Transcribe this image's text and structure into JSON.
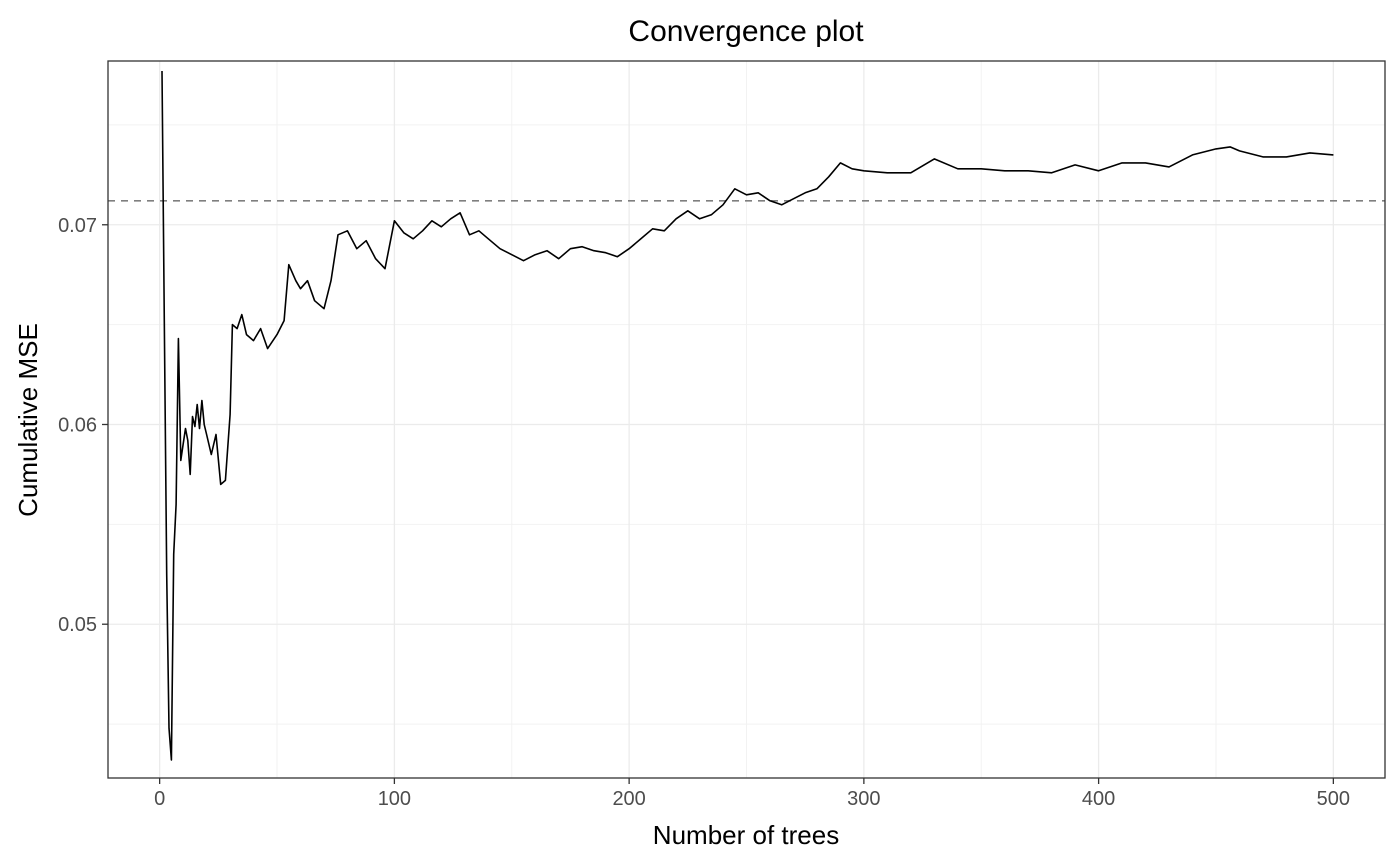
{
  "chart_data": {
    "type": "line",
    "title": "Convergence plot",
    "xlabel": "Number of trees",
    "ylabel": "Cumulative MSE",
    "xlim": [
      -22,
      522
    ],
    "ylim": [
      0.0423,
      0.0782
    ],
    "x_ticks": [
      0,
      100,
      200,
      300,
      400,
      500
    ],
    "x_tick_labels": [
      "0",
      "100",
      "200",
      "300",
      "400",
      "500"
    ],
    "y_ticks": [
      0.05,
      0.06,
      0.07
    ],
    "y_tick_labels": [
      "0.05",
      "0.06",
      "0.07"
    ],
    "grid": true,
    "legend": "none",
    "reference_line": {
      "y": 0.0712,
      "style": "dashed",
      "color": "#7f7f7f"
    },
    "series": [
      {
        "color": "#000000",
        "x": [
          1,
          2,
          3,
          4,
          5,
          6,
          7,
          8,
          9,
          10,
          11,
          12,
          13,
          14,
          15,
          16,
          17,
          18,
          19,
          20,
          22,
          24,
          26,
          28,
          30,
          31,
          33,
          35,
          37,
          40,
          43,
          46,
          50,
          53,
          55,
          58,
          60,
          63,
          66,
          70,
          73,
          76,
          80,
          84,
          88,
          92,
          96,
          100,
          104,
          108,
          112,
          116,
          120,
          124,
          128,
          132,
          136,
          140,
          145,
          150,
          155,
          160,
          165,
          170,
          175,
          180,
          185,
          190,
          195,
          200,
          205,
          210,
          215,
          220,
          225,
          230,
          235,
          240,
          245,
          250,
          255,
          260,
          265,
          270,
          275,
          280,
          285,
          290,
          295,
          300,
          310,
          320,
          330,
          340,
          350,
          360,
          370,
          380,
          390,
          400,
          410,
          420,
          430,
          440,
          450,
          456,
          460,
          470,
          480,
          490,
          500
        ],
        "y": [
          0.0777,
          0.0652,
          0.0525,
          0.0448,
          0.0432,
          0.0535,
          0.056,
          0.0643,
          0.0582,
          0.059,
          0.0598,
          0.0592,
          0.0575,
          0.0604,
          0.0599,
          0.061,
          0.0598,
          0.0612,
          0.06,
          0.0595,
          0.0585,
          0.0595,
          0.057,
          0.0572,
          0.0605,
          0.065,
          0.0648,
          0.0655,
          0.0645,
          0.0642,
          0.0648,
          0.0638,
          0.0645,
          0.0652,
          0.068,
          0.0672,
          0.0668,
          0.0672,
          0.0662,
          0.0658,
          0.0672,
          0.0695,
          0.0697,
          0.0688,
          0.0692,
          0.0683,
          0.0678,
          0.0702,
          0.0696,
          0.0693,
          0.0697,
          0.0702,
          0.0699,
          0.0703,
          0.0706,
          0.0695,
          0.0697,
          0.0693,
          0.0688,
          0.0685,
          0.0682,
          0.0685,
          0.0687,
          0.0683,
          0.0688,
          0.0689,
          0.0687,
          0.0686,
          0.0684,
          0.0688,
          0.0693,
          0.0698,
          0.0697,
          0.0703,
          0.0707,
          0.0703,
          0.0705,
          0.071,
          0.0718,
          0.0715,
          0.0716,
          0.0712,
          0.071,
          0.0713,
          0.0716,
          0.0718,
          0.0724,
          0.0731,
          0.0728,
          0.0727,
          0.0726,
          0.0726,
          0.0733,
          0.0728,
          0.0728,
          0.0727,
          0.0727,
          0.0726,
          0.073,
          0.0727,
          0.0731,
          0.0731,
          0.0729,
          0.0735,
          0.0738,
          0.0739,
          0.0737,
          0.0734,
          0.0734,
          0.0736,
          0.0735
        ]
      }
    ]
  }
}
